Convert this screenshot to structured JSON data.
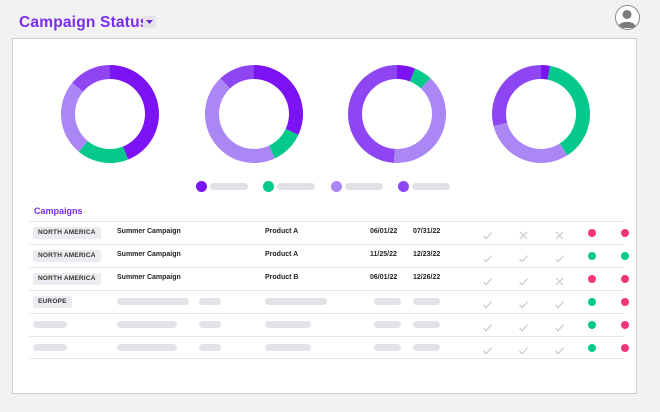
{
  "header": {
    "title": "Campaign Status",
    "dropdown_icon": "caret-down-icon",
    "avatar_icon": "user-avatar-icon"
  },
  "colors": {
    "accent": "#7a2cf0",
    "violet": "#7b13f5",
    "green": "#05c98b",
    "lavender": "#ab86f5",
    "purple": "#8e46f3",
    "status_green": "#05c98b",
    "status_pink": "#f0357a"
  },
  "chart_data": [
    {
      "type": "pie",
      "donut": true,
      "values": [
        44,
        17,
        25,
        14
      ],
      "colors": [
        "#7b13f5",
        "#05c98b",
        "#ab86f5",
        "#8e46f3"
      ]
    },
    {
      "type": "pie",
      "donut": true,
      "values": [
        32,
        11,
        45,
        12
      ],
      "colors": [
        "#7b13f5",
        "#05c98b",
        "#ab86f5",
        "#8e46f3"
      ]
    },
    {
      "type": "pie",
      "donut": true,
      "values": [
        6,
        6,
        39,
        49
      ],
      "colors": [
        "#7b13f5",
        "#05c98b",
        "#ab86f5",
        "#8e46f3"
      ]
    },
    {
      "type": "pie",
      "donut": true,
      "values": [
        3,
        38,
        30,
        29
      ],
      "colors": [
        "#7b13f5",
        "#05c98b",
        "#ab86f5",
        "#8e46f3"
      ]
    }
  ],
  "legend": [
    {
      "color": "#7b13f5"
    },
    {
      "color": "#05c98b"
    },
    {
      "color": "#ab86f5"
    },
    {
      "color": "#8e46f3"
    }
  ],
  "campaigns": {
    "title": "Campaigns",
    "rows": [
      {
        "region": "NORTH AMERICA",
        "campaign": "Summer Campaign",
        "product": "Product A",
        "start": "06/01/22",
        "end": "07/31/22",
        "status": [
          "#f0357a",
          "#f0357a"
        ]
      },
      {
        "region": "NORTH AMERICA",
        "campaign": "Summer Campaign",
        "product": "Product A",
        "start": "11/25/22",
        "end": "12/23/22",
        "status": [
          "#05c98b",
          "#05c98b"
        ]
      },
      {
        "region": "NORTH AMERICA",
        "campaign": "Summer Campaign",
        "product": "Product B",
        "start": "06/01/22",
        "end": "12/26/22",
        "status": [
          "#f0357a",
          "#f0357a"
        ]
      },
      {
        "region": "EUROPE",
        "campaign": "",
        "product": "",
        "start": "",
        "end": "",
        "status": [
          "#05c98b",
          "#f0357a"
        ]
      },
      {
        "region": "",
        "campaign": "",
        "product": "",
        "start": "",
        "end": "",
        "status": [
          "#05c98b",
          "#f0357a"
        ]
      },
      {
        "region": "",
        "campaign": "",
        "product": "",
        "start": "",
        "end": "",
        "status": [
          "#05c98b",
          "#f0357a"
        ]
      }
    ]
  }
}
